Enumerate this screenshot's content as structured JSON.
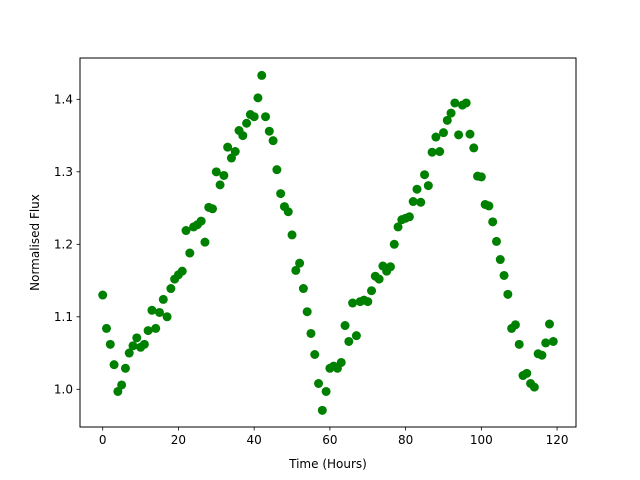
{
  "chart_data": {
    "type": "scatter",
    "title": "",
    "xlabel": "Time (Hours)",
    "ylabel": "Normalised Flux",
    "xlim": [
      -6,
      125
    ],
    "ylim": [
      0.948,
      1.457
    ],
    "xticks": [
      0,
      20,
      40,
      60,
      80,
      100,
      120
    ],
    "yticks": [
      1.0,
      1.1,
      1.2,
      1.3,
      1.4
    ],
    "xtick_labels": [
      "0",
      "20",
      "40",
      "60",
      "80",
      "100",
      "120"
    ],
    "ytick_labels": [
      "1.0",
      "1.1",
      "1.2",
      "1.3",
      "1.4"
    ],
    "grid": false,
    "marker_color": "#008000",
    "series": [
      {
        "points": [
          [
            0,
            1.13
          ],
          [
            1,
            1.084
          ],
          [
            2,
            1.062
          ],
          [
            3,
            1.034
          ],
          [
            4,
            0.997
          ],
          [
            5,
            1.006
          ],
          [
            6,
            1.029
          ],
          [
            7,
            1.05
          ],
          [
            8,
            1.06
          ],
          [
            9,
            1.071
          ],
          [
            10,
            1.058
          ],
          [
            11,
            1.062
          ],
          [
            12,
            1.081
          ],
          [
            13,
            1.109
          ],
          [
            14,
            1.084
          ],
          [
            15,
            1.106
          ],
          [
            16,
            1.124
          ],
          [
            17,
            1.1
          ],
          [
            18,
            1.139
          ],
          [
            19,
            1.152
          ],
          [
            20,
            1.158
          ],
          [
            21,
            1.163
          ],
          [
            22,
            1.219
          ],
          [
            23,
            1.188
          ],
          [
            24,
            1.224
          ],
          [
            25,
            1.227
          ],
          [
            26,
            1.232
          ],
          [
            27,
            1.203
          ],
          [
            28,
            1.251
          ],
          [
            29,
            1.249
          ],
          [
            30,
            1.3
          ],
          [
            31,
            1.282
          ],
          [
            32,
            1.295
          ],
          [
            33,
            1.334
          ],
          [
            34,
            1.319
          ],
          [
            35,
            1.328
          ],
          [
            36,
            1.357
          ],
          [
            37,
            1.35
          ],
          [
            38,
            1.367
          ],
          [
            39,
            1.379
          ],
          [
            40,
            1.376
          ],
          [
            41,
            1.402
          ],
          [
            42,
            1.433
          ],
          [
            43,
            1.376
          ],
          [
            44,
            1.356
          ],
          [
            45,
            1.343
          ],
          [
            46,
            1.303
          ],
          [
            47,
            1.27
          ],
          [
            48,
            1.252
          ],
          [
            49,
            1.245
          ],
          [
            50,
            1.213
          ],
          [
            51,
            1.164
          ],
          [
            52,
            1.174
          ],
          [
            53,
            1.139
          ],
          [
            54,
            1.107
          ],
          [
            55,
            1.077
          ],
          [
            56,
            1.048
          ],
          [
            57,
            1.008
          ],
          [
            58,
            0.971
          ],
          [
            59,
            0.997
          ],
          [
            60,
            1.029
          ],
          [
            61,
            1.032
          ],
          [
            62,
            1.029
          ],
          [
            63,
            1.037
          ],
          [
            64,
            1.088
          ],
          [
            65,
            1.066
          ],
          [
            66,
            1.119
          ],
          [
            67,
            1.074
          ],
          [
            68,
            1.121
          ],
          [
            69,
            1.123
          ],
          [
            70,
            1.121
          ],
          [
            71,
            1.136
          ],
          [
            72,
            1.156
          ],
          [
            73,
            1.152
          ],
          [
            74,
            1.17
          ],
          [
            75,
            1.163
          ],
          [
            76,
            1.169
          ],
          [
            77,
            1.2
          ],
          [
            78,
            1.224
          ],
          [
            79,
            1.234
          ],
          [
            80,
            1.236
          ],
          [
            81,
            1.238
          ],
          [
            82,
            1.259
          ],
          [
            83,
            1.276
          ],
          [
            84,
            1.258
          ],
          [
            85,
            1.296
          ],
          [
            86,
            1.281
          ],
          [
            87,
            1.327
          ],
          [
            88,
            1.348
          ],
          [
            89,
            1.328
          ],
          [
            90,
            1.354
          ],
          [
            91,
            1.371
          ],
          [
            92,
            1.381
          ],
          [
            93,
            1.395
          ],
          [
            94,
            1.351
          ],
          [
            95,
            1.392
          ],
          [
            96,
            1.395
          ],
          [
            97,
            1.352
          ],
          [
            98,
            1.333
          ],
          [
            99,
            1.294
          ],
          [
            100,
            1.293
          ],
          [
            101,
            1.255
          ],
          [
            102,
            1.253
          ],
          [
            103,
            1.231
          ],
          [
            104,
            1.204
          ],
          [
            105,
            1.179
          ],
          [
            106,
            1.157
          ],
          [
            107,
            1.131
          ],
          [
            108,
            1.084
          ],
          [
            109,
            1.089
          ],
          [
            110,
            1.062
          ],
          [
            111,
            1.019
          ],
          [
            112,
            1.022
          ],
          [
            113,
            1.008
          ],
          [
            114,
            1.003
          ],
          [
            115,
            1.049
          ],
          [
            116,
            1.047
          ],
          [
            117,
            1.064
          ],
          [
            118,
            1.09
          ],
          [
            119,
            1.066
          ]
        ]
      }
    ]
  }
}
